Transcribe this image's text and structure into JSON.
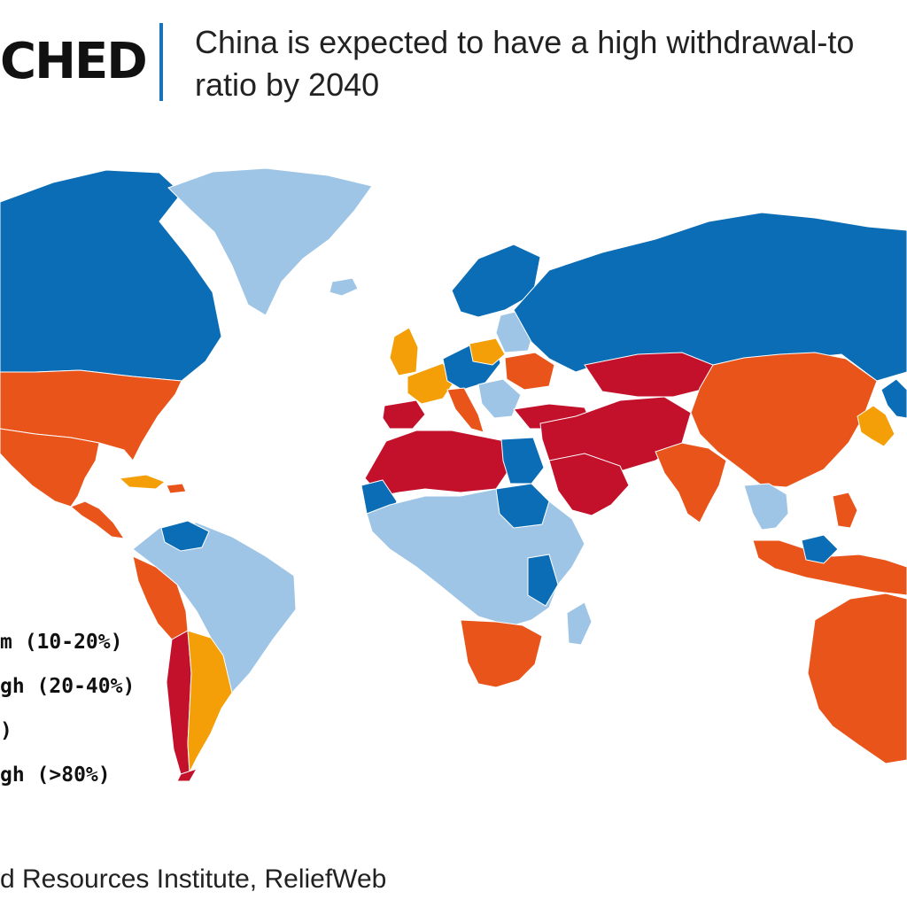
{
  "header": {
    "brand": "CHED",
    "title_line1": "China is expected to have a high withdrawal-to",
    "title_line2": "ratio by 2040"
  },
  "legend": {
    "items": [
      {
        "label": "m (10-20%)",
        "color": "#0b6db5"
      },
      {
        "label": "gh (20-40%)",
        "color": "#e9541b"
      },
      {
        "label": ")",
        "color": "#f49f07"
      },
      {
        "label": "gh (>80%)",
        "color": "#c3102b"
      }
    ]
  },
  "colors": {
    "low": "#9ec5e6",
    "low_medium": "#0b6db5",
    "medium_high": "#e9541b",
    "high": "#f49f07",
    "extremely_high": "#c3102b",
    "accent": "#1a73b8"
  },
  "source": {
    "text": "d Resources Institute,  ReliefWeb"
  }
}
